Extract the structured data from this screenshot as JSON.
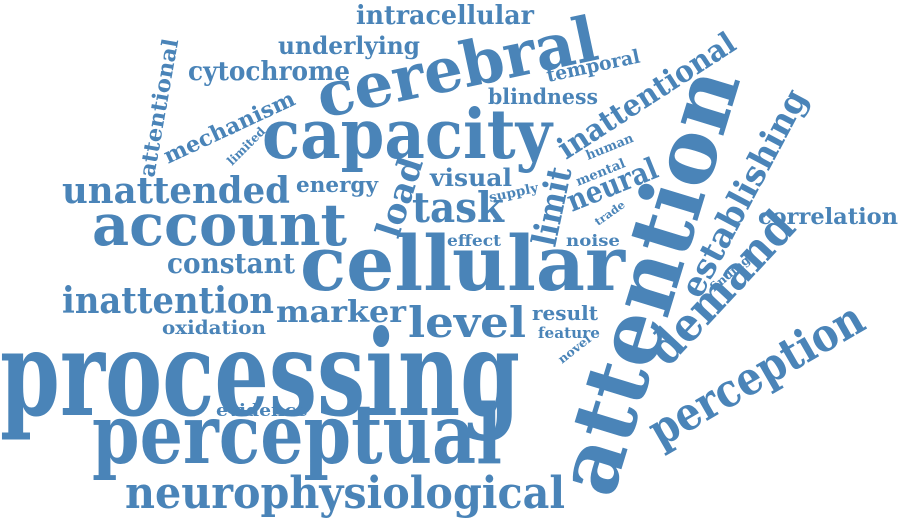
{
  "word_cloud": {
    "color": "#4a84b8",
    "words": {
      "processing": "processing",
      "attention": "attention",
      "perceptual": "perceptual",
      "cellular": "cellular",
      "capacity": "capacity",
      "cerebral": "cerebral",
      "account": "account",
      "neurophysiological": "neurophysiological",
      "perception": "perception",
      "demand": "demand",
      "unattended": "unattended",
      "inattention": "inattention",
      "level": "level",
      "task": "task",
      "establishing": "establishing",
      "inattentional": "inattentional",
      "limit": "limit",
      "load": "load",
      "marker": "marker",
      "constant": "constant",
      "intracellular": "intracellular",
      "cytochrome": "cytochrome",
      "underlying": "underlying",
      "mechanism": "mechanism",
      "attentional": "attentional",
      "neural": "neural",
      "visual": "visual",
      "correlation": "correlation",
      "blindness": "blindness",
      "temporal": "temporal",
      "energy": "energy",
      "oxidation": "oxidation",
      "result": "result",
      "evidence": "evidence",
      "effect": "effect",
      "noise": "noise",
      "feature": "feature",
      "human": "human",
      "mental": "mental",
      "supply": "supply",
      "limited": "limited",
      "trade": "trade",
      "finding": "finding",
      "novel": "novel"
    }
  }
}
